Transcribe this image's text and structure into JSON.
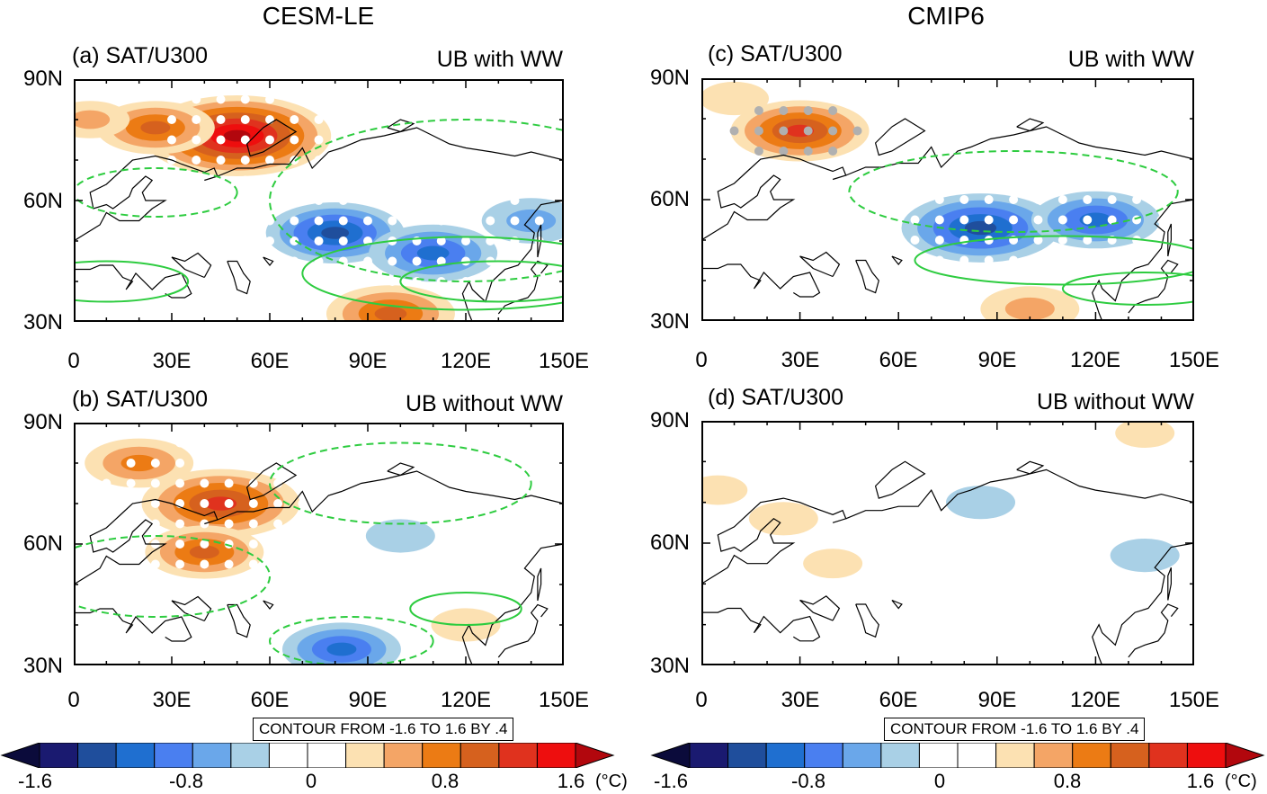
{
  "column_titles": [
    "CESM-LE",
    "CMIP6"
  ],
  "panels": [
    {
      "id": "a",
      "label": "(a) SAT/U300",
      "case": "UB with WW"
    },
    {
      "id": "b",
      "label": "(b) SAT/U300",
      "case": "UB without WW"
    },
    {
      "id": "c",
      "label": "(c) SAT/U300",
      "case": "UB with WW"
    },
    {
      "id": "d",
      "label": "(d) SAT/U300",
      "case": "UB without WW"
    }
  ],
  "contour_note": "CONTOUR FROM -1.6 TO 1.6 BY .4",
  "colorbar": {
    "labels": [
      "-1.6",
      "-0.8",
      "0",
      "0.8",
      "1.6"
    ],
    "unit": "(°C)",
    "colors": [
      "#0b0b3b",
      "#1a1a70",
      "#1f4e9c",
      "#1f6fd0",
      "#4a7ff0",
      "#6aa7ea",
      "#a9d0e6",
      "#ffffff",
      "#ffffff",
      "#fce1b2",
      "#f4a566",
      "#ec7b14",
      "#d6611e",
      "#e0321e",
      "#ee0e0e",
      "#b2070d"
    ]
  },
  "chart_data": [
    {
      "type": "heatmap",
      "title": "(a) SAT/U300",
      "subtitle": "UB with WW",
      "x_ticks": [
        "0",
        "30E",
        "60E",
        "90E",
        "120E",
        "150E"
      ],
      "y_ticks": [
        "30N",
        "60N",
        "90N"
      ],
      "xlim": [
        0,
        150
      ],
      "ylim": [
        30,
        90
      ],
      "anomalies": [
        {
          "lon": 50,
          "lat": 76,
          "value": 1.5
        },
        {
          "lon": 25,
          "lat": 78,
          "value": 0.8
        },
        {
          "lon": 5,
          "lat": 80,
          "value": 0.4
        },
        {
          "lon": 80,
          "lat": 52,
          "value": -1.0
        },
        {
          "lon": 110,
          "lat": 47,
          "value": -0.9
        },
        {
          "lon": 140,
          "lat": 55,
          "value": -0.6
        },
        {
          "lon": 97,
          "lat": 32,
          "value": 0.9
        }
      ]
    },
    {
      "type": "heatmap",
      "title": "(b) SAT/U300",
      "subtitle": "UB without WW",
      "x_ticks": [
        "0",
        "30E",
        "60E",
        "90E",
        "120E",
        "150E"
      ],
      "y_ticks": [
        "30N",
        "60N",
        "90N"
      ],
      "xlim": [
        0,
        150
      ],
      "ylim": [
        30,
        90
      ],
      "anomalies": [
        {
          "lon": 45,
          "lat": 70,
          "value": 1.2
        },
        {
          "lon": 20,
          "lat": 80,
          "value": 0.7
        },
        {
          "lon": 40,
          "lat": 58,
          "value": 0.8
        },
        {
          "lon": 100,
          "lat": 62,
          "value": -0.3
        },
        {
          "lon": 82,
          "lat": 34,
          "value": -0.8
        },
        {
          "lon": 120,
          "lat": 40,
          "value": 0.3
        }
      ]
    },
    {
      "type": "heatmap",
      "title": "(c) SAT/U300",
      "subtitle": "UB with WW",
      "x_ticks": [
        "0",
        "30E",
        "60E",
        "90E",
        "120E",
        "150E"
      ],
      "y_ticks": [
        "30N",
        "60N",
        "90N"
      ],
      "xlim": [
        0,
        150
      ],
      "ylim": [
        30,
        90
      ],
      "anomalies": [
        {
          "lon": 30,
          "lat": 77,
          "value": 1.0
        },
        {
          "lon": 10,
          "lat": 85,
          "value": 0.3
        },
        {
          "lon": 85,
          "lat": 53,
          "value": -1.2
        },
        {
          "lon": 120,
          "lat": 55,
          "value": -0.9
        },
        {
          "lon": 100,
          "lat": 33,
          "value": 0.6
        }
      ]
    },
    {
      "type": "heatmap",
      "title": "(d) SAT/U300",
      "subtitle": "UB without WW",
      "x_ticks": [
        "0",
        "30E",
        "60E",
        "90E",
        "120E",
        "150E"
      ],
      "y_ticks": [
        "30N",
        "60N",
        "90N"
      ],
      "xlim": [
        0,
        150
      ],
      "ylim": [
        30,
        90
      ],
      "anomalies": [
        {
          "lon": 25,
          "lat": 66,
          "value": 0.3
        },
        {
          "lon": 5,
          "lat": 73,
          "value": 0.2
        },
        {
          "lon": 85,
          "lat": 70,
          "value": -0.3
        },
        {
          "lon": 135,
          "lat": 57,
          "value": -0.3
        },
        {
          "lon": 40,
          "lat": 55,
          "value": 0.2
        },
        {
          "lon": 135,
          "lat": 87,
          "value": 0.2
        }
      ]
    }
  ]
}
